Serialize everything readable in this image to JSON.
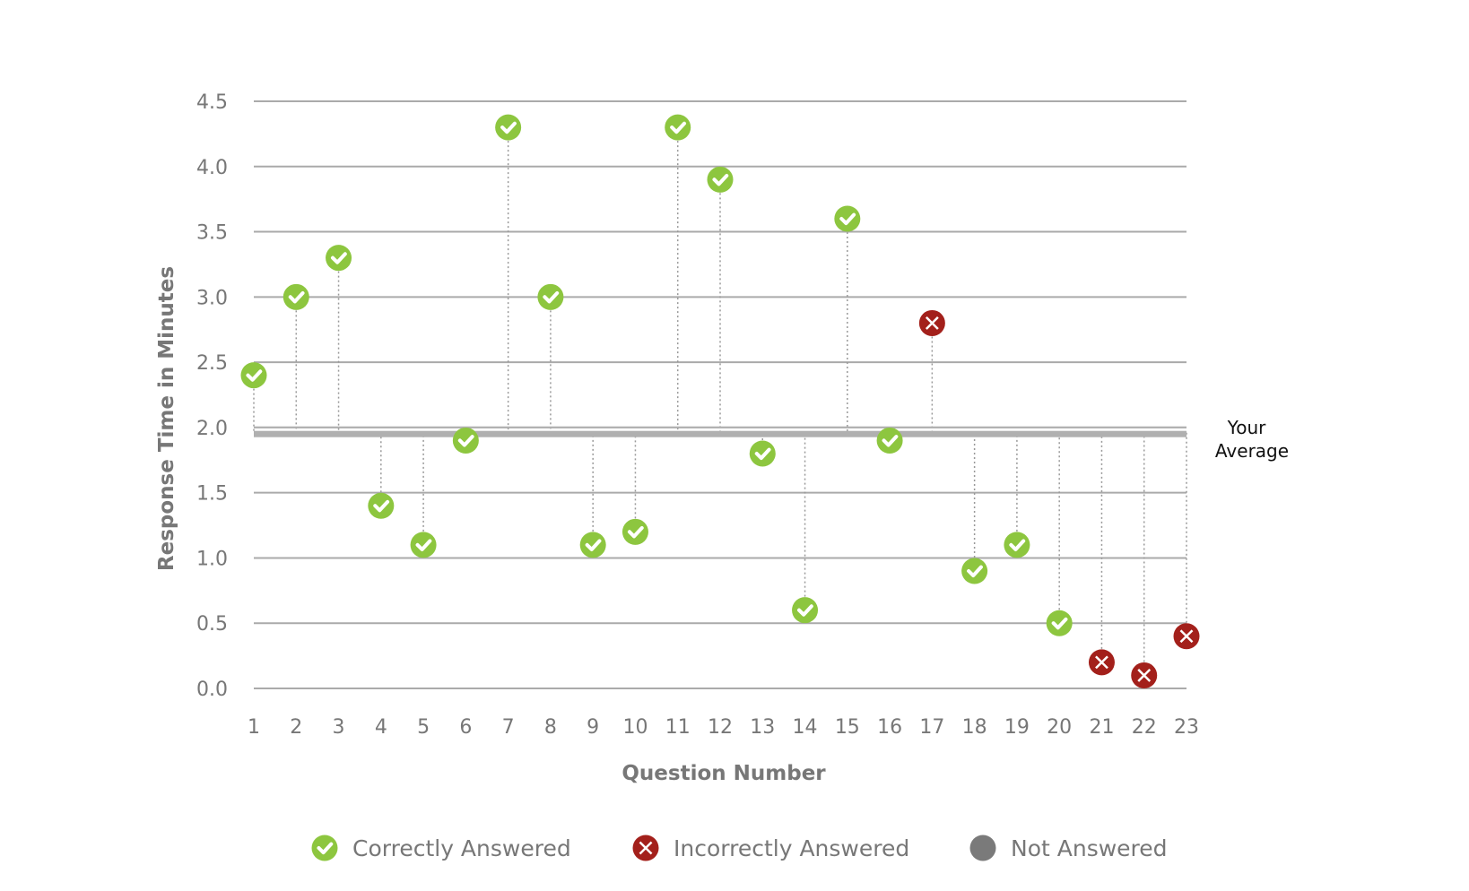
{
  "chart_data": {
    "type": "scatter",
    "xlabel": "Question Number",
    "ylabel": "Response Time in Minutes",
    "ylim": [
      0,
      4.5
    ],
    "yticks": [
      "0.0",
      "0.5",
      "1.0",
      "1.5",
      "2.0",
      "2.5",
      "3.0",
      "3.5",
      "4.0",
      "4.5"
    ],
    "x": [
      1,
      2,
      3,
      4,
      5,
      6,
      7,
      8,
      9,
      10,
      11,
      12,
      13,
      14,
      15,
      16,
      17,
      18,
      19,
      20,
      21,
      22,
      23
    ],
    "values": [
      2.4,
      3.0,
      3.3,
      1.4,
      1.1,
      1.9,
      4.3,
      3.0,
      1.1,
      1.2,
      4.3,
      3.9,
      1.8,
      0.6,
      3.6,
      1.9,
      2.8,
      0.9,
      1.1,
      0.5,
      0.2,
      0.1,
      0.4
    ],
    "status": [
      "correct",
      "correct",
      "correct",
      "correct",
      "correct",
      "correct",
      "correct",
      "correct",
      "correct",
      "correct",
      "correct",
      "correct",
      "correct",
      "correct",
      "correct",
      "correct",
      "incorrect",
      "correct",
      "correct",
      "correct",
      "incorrect",
      "incorrect",
      "incorrect"
    ],
    "average": 1.96,
    "average_label_line1": "Your",
    "average_label_line2": "Average",
    "grid": true,
    "legend_placement": "bottom",
    "legend": [
      {
        "key": "correct",
        "label": "Correctly Answered",
        "icon": "check-circle-icon"
      },
      {
        "key": "incorrect",
        "label": "Incorrectly Answered",
        "icon": "x-circle-icon"
      },
      {
        "key": "not",
        "label": "Not Answered",
        "icon": "gray-circle-icon"
      }
    ],
    "colors": {
      "correct": "#8dc63f",
      "incorrect": "#a3201b",
      "not": "#7a7a7a",
      "grid": "#aaaaaa",
      "average": "#b0b0b0"
    }
  }
}
